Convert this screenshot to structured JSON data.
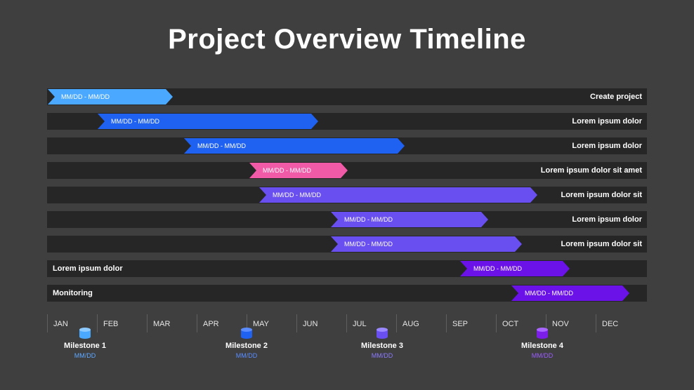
{
  "title": "Project Overview Timeline",
  "months": [
    "JAN",
    "FEB",
    "MAR",
    "APR",
    "MAY",
    "JUN",
    "JUL",
    "AUG",
    "SEP",
    "OCT",
    "NOV",
    "DEC"
  ],
  "rows": [
    {
      "label": "Create project",
      "label_side": "right",
      "bar_text": "MM/DD - MM/DD",
      "color": "#4aa8ff"
    },
    {
      "label": "Lorem ipsum dolor",
      "label_side": "right",
      "bar_text": "MM/DD - MM/DD",
      "color": "#1f62f2"
    },
    {
      "label": "Lorem ipsum dolor",
      "label_side": "right",
      "bar_text": "MM/DD - MM/DD",
      "color": "#1f62f2"
    },
    {
      "label": "Lorem ipsum dolor sit amet",
      "label_side": "right",
      "bar_text": "MM/DD - MM/DD",
      "color": "#f05aa6"
    },
    {
      "label": "Lorem ipsum dolor sit",
      "label_side": "right",
      "bar_text": "MM/DD - MM/DD",
      "color": "#6a4ff0"
    },
    {
      "label": "Lorem ipsum dolor",
      "label_side": "right",
      "bar_text": "MM/DD - MM/DD",
      "color": "#6a4ff0"
    },
    {
      "label": "Lorem ipsum dolor sit",
      "label_side": "right",
      "bar_text": "MM/DD - MM/DD",
      "color": "#6a4ff0"
    },
    {
      "label": "Lorem ipsum dolor",
      "label_side": "left",
      "bar_text": "MM/DD - MM/DD",
      "color": "#6a12e8"
    },
    {
      "label": "Monitoring",
      "label_side": "left",
      "bar_text": "MM/DD - MM/DD",
      "color": "#6a12e8"
    }
  ],
  "milestones": [
    {
      "name": "Milestone 1",
      "date": "MM/DD",
      "color": "#4aa8ff"
    },
    {
      "name": "Milestone 2",
      "date": "MM/DD",
      "color": "#1f62f2"
    },
    {
      "name": "Milestone 3",
      "date": "MM/DD",
      "color": "#6a4ff0"
    },
    {
      "name": "Milestone 4",
      "date": "MM/DD",
      "color": "#8a2be8"
    }
  ]
}
